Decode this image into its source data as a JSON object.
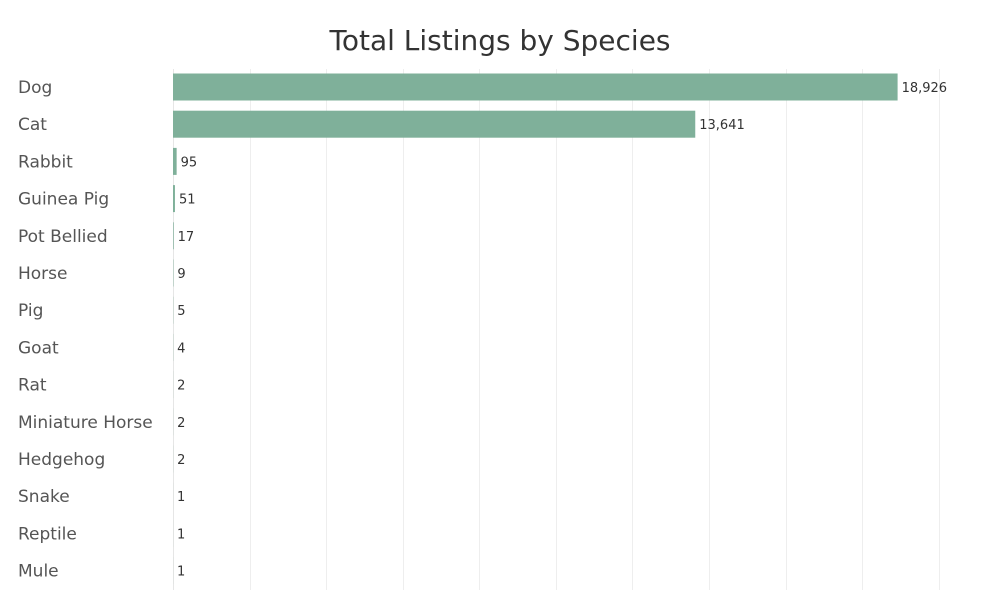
{
  "chart_data": {
    "type": "bar",
    "orientation": "horizontal",
    "title": "Total Listings by Species",
    "xlabel": "",
    "ylabel": "",
    "categories": [
      "Dog",
      "Cat",
      "Rabbit",
      "Guinea Pig",
      "Pot Bellied",
      "Horse",
      "Pig",
      "Goat",
      "Rat",
      "Miniature Horse",
      "Hedgehog",
      "Snake",
      "Reptile",
      "Mule"
    ],
    "values": [
      18926,
      13641,
      95,
      51,
      17,
      9,
      5,
      4,
      2,
      2,
      2,
      1,
      1,
      1
    ],
    "value_labels": [
      "18,926",
      "13,641",
      "95",
      "51",
      "17",
      "9",
      "5",
      "4",
      "2",
      "2",
      "2",
      "1",
      "1",
      "1"
    ],
    "xlim": [
      0,
      21000
    ],
    "grid": true,
    "bar_color": "#7fb09a"
  }
}
